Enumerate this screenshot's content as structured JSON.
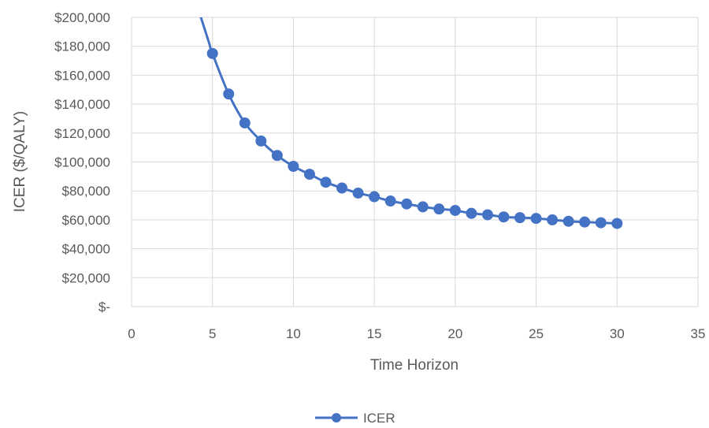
{
  "chart_data": {
    "type": "line",
    "title": "",
    "xlabel": "Time Horizon",
    "ylabel": "ICER ($/QALY)",
    "xlim": [
      0,
      35
    ],
    "ylim": [
      0,
      200000
    ],
    "x_ticks": [
      0,
      5,
      10,
      15,
      20,
      25,
      30,
      35
    ],
    "y_ticks": [
      0,
      20000,
      40000,
      60000,
      80000,
      100000,
      120000,
      140000,
      160000,
      180000,
      200000
    ],
    "x_tick_labels": [
      "0",
      "5",
      "10",
      "15",
      "20",
      "25",
      "30",
      "35"
    ],
    "y_tick_labels": [
      "$-",
      "$20,000",
      "$40,000",
      "$60,000",
      "$80,000",
      "$100,000",
      "$120,000",
      "$140,000",
      "$160,000",
      "$180,000",
      "$200,000"
    ],
    "grid": true,
    "legend_position": "bottom-center",
    "series_color": "#4472c4",
    "grid_color": "#d9d9d9",
    "series": [
      {
        "name": "ICER",
        "x": [
          5,
          6,
          7,
          8,
          9,
          10,
          11,
          12,
          13,
          14,
          15,
          16,
          17,
          18,
          19,
          20,
          21,
          22,
          23,
          24,
          25,
          26,
          27,
          28,
          29,
          30
        ],
        "values": [
          175000,
          147000,
          127000,
          114500,
          104500,
          97000,
          91500,
          86000,
          82000,
          78500,
          76000,
          73000,
          71000,
          69000,
          67500,
          66500,
          64500,
          63500,
          62000,
          61500,
          61000,
          60000,
          59000,
          58500,
          58000,
          57500
        ]
      }
    ]
  }
}
